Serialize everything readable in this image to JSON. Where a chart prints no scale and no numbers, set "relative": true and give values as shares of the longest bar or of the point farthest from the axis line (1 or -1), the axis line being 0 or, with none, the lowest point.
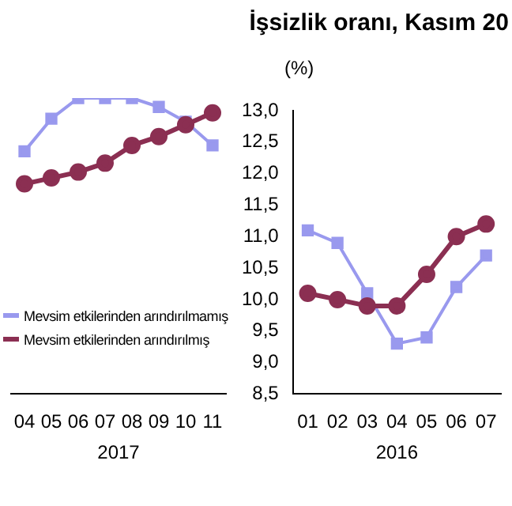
{
  "chart_data": [
    {
      "type": "line",
      "xlabel": "2017",
      "categories": [
        "04",
        "05",
        "06",
        "07",
        "08",
        "09",
        "10",
        "11"
      ],
      "relative": true,
      "legend": "bottom left",
      "series": [
        {
          "name": "Mevsim etkilerinden arındırılmamış",
          "color": "#9999ee",
          "marker": "square",
          "values": [
            0.82,
            0.93,
            1.0,
            1.0,
            1.0,
            0.97,
            0.92,
            0.84
          ]
        },
        {
          "name": "Mevsim etkilerinden arındırılmış",
          "color": "#8b2f52",
          "marker": "circle",
          "values": [
            0.71,
            0.73,
            0.75,
            0.78,
            0.84,
            0.87,
            0.91,
            0.95
          ]
        }
      ]
    },
    {
      "type": "line",
      "title": "İşsizlik oranı, Kasım 20",
      "ylabel": "(%)",
      "xlabel": "2016",
      "categories": [
        "01",
        "02",
        "03",
        "04",
        "05",
        "06",
        "07"
      ],
      "ylim": [
        8.5,
        13.0
      ],
      "yticks": [
        {
          "value": 8.5,
          "label": "8,5"
        },
        {
          "value": 9.0,
          "label": "9,0"
        },
        {
          "value": 9.5,
          "label": "9,5"
        },
        {
          "value": 10.0,
          "label": "10,0"
        },
        {
          "value": 10.5,
          "label": "10,5"
        },
        {
          "value": 11.0,
          "label": "11,0"
        },
        {
          "value": 11.5,
          "label": "11,5"
        },
        {
          "value": 12.0,
          "label": "12,0"
        },
        {
          "value": 12.5,
          "label": "12,5"
        },
        {
          "value": 13.0,
          "label": "13,0"
        }
      ],
      "series": [
        {
          "color": "#9999ee",
          "marker": "square",
          "values": [
            11.1,
            10.9,
            10.1,
            9.3,
            9.4,
            10.2,
            10.7
          ]
        },
        {
          "color": "#8b2f52",
          "marker": "circle",
          "values": [
            10.1,
            10.0,
            9.9,
            9.9,
            10.4,
            11.0,
            11.2
          ]
        }
      ]
    }
  ]
}
